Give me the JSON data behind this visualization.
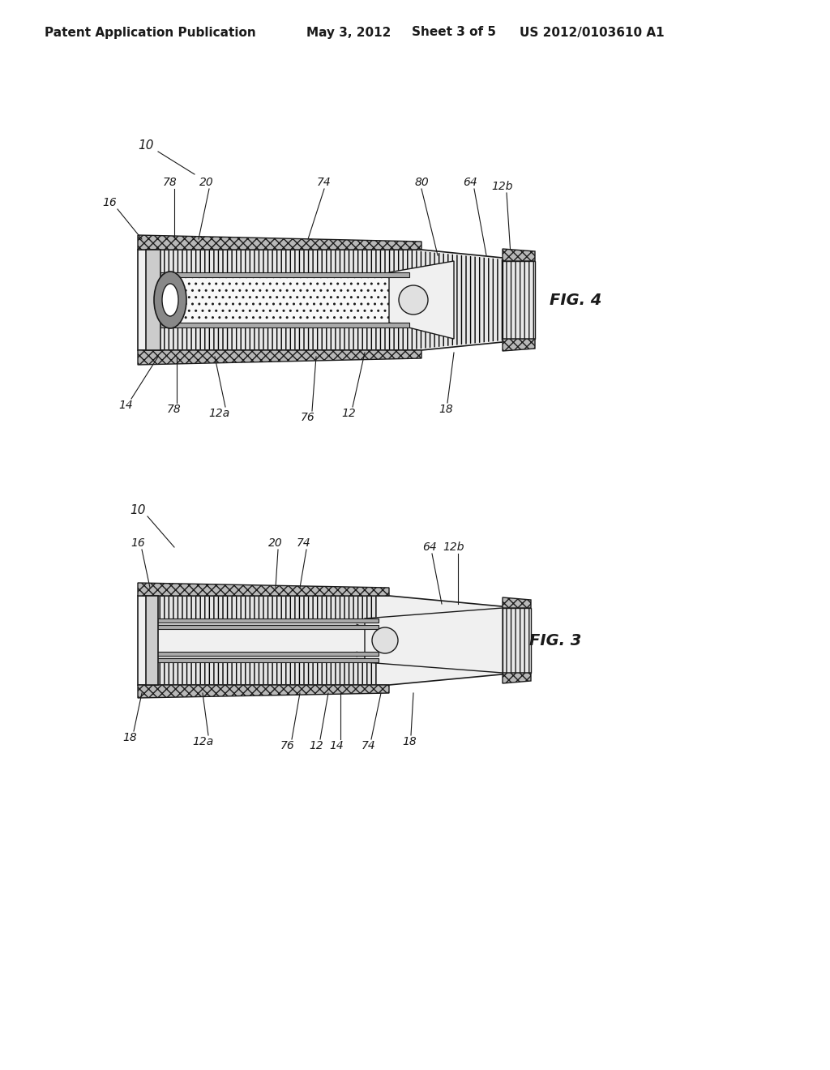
{
  "bg_color": "#ffffff",
  "header_text": "Patent Application Publication",
  "header_date": "May 3, 2012",
  "header_sheet": "Sheet 3 of 5",
  "header_patent": "US 2012/0103610 A1",
  "fig4_label": "FIG. 4",
  "fig3_label": "FIG. 3",
  "fig4_ref_num": "10",
  "fig3_ref_num": "10",
  "text_color": "#1a1a1a",
  "line_color": "#1a1a1a",
  "hatch_color": "#555555",
  "fill_color_formation": "#e8e8e8",
  "fill_color_cement": "#c8c8c8",
  "fill_color_pipe": "#f5f5f5",
  "fill_color_dark": "#888888"
}
